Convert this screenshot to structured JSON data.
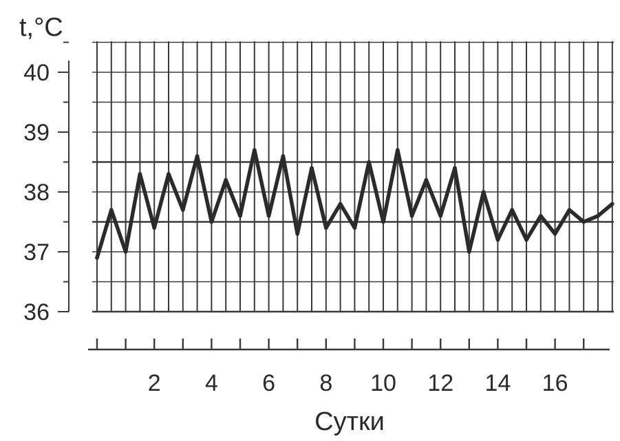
{
  "chart_data": {
    "type": "line",
    "title": "",
    "xlabel": "Сутки",
    "ylabel": "t,°C",
    "xlim": [
      0,
      18
    ],
    "ylim": [
      36,
      40.5
    ],
    "x_ticks": [
      2,
      4,
      6,
      8,
      10,
      12,
      14,
      16
    ],
    "y_ticks": [
      36,
      37,
      38,
      39,
      40
    ],
    "grid": true,
    "legend": "none",
    "line_color": "#2b2b2b",
    "grid_color": "#3a3a3a",
    "series": [
      {
        "x": [
          0,
          0.5,
          1.0,
          1.5,
          2.0,
          2.5,
          3.0,
          3.5,
          4.0,
          4.5,
          5.0,
          5.5,
          6.0,
          6.5,
          7.0,
          7.5,
          8.0,
          8.5,
          9.0,
          9.5,
          10.0,
          10.5,
          11.0,
          11.5,
          12.0,
          12.5,
          13.0,
          13.5,
          14.0,
          14.5,
          15.0,
          15.5,
          16.0,
          16.5,
          17.0,
          17.5,
          18.0
        ],
        "y": [
          36.9,
          37.7,
          37.0,
          38.3,
          37.4,
          38.3,
          37.7,
          38.6,
          37.5,
          38.2,
          37.6,
          38.7,
          37.6,
          38.6,
          37.3,
          38.4,
          37.4,
          37.8,
          37.4,
          38.5,
          37.5,
          38.7,
          37.6,
          38.2,
          37.6,
          38.4,
          37.0,
          38.0,
          37.2,
          37.7,
          37.2,
          37.6,
          37.3,
          37.7,
          37.5,
          37.6,
          37.8
        ]
      }
    ]
  }
}
